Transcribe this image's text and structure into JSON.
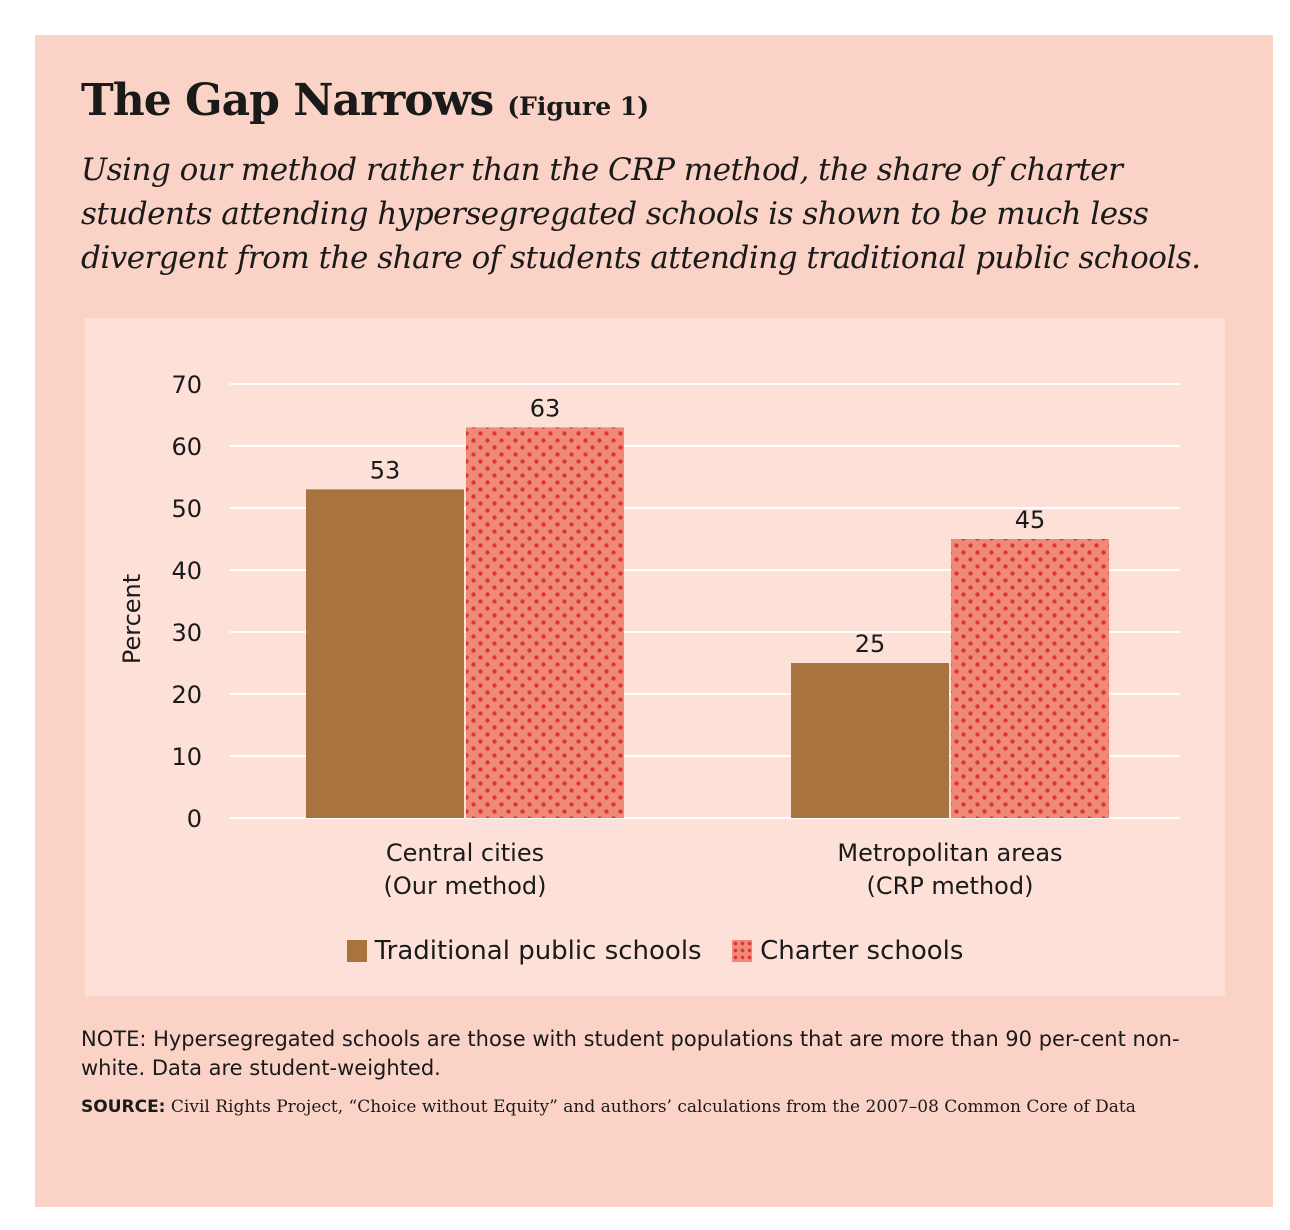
{
  "header": {
    "title": "The Gap Narrows",
    "figure_label": "(Figure 1)",
    "subtitle": "Using our method rather than the CRP method, the share of charter students attending hypersegregated schools is shown to be much less divergent from the share of students attending traditional public schools."
  },
  "chart_data": {
    "type": "bar",
    "categories": [
      [
        "Central cities",
        "(Our method)"
      ],
      [
        "Metropolitan areas",
        "(CRP method)"
      ]
    ],
    "series": [
      {
        "name": "Traditional public schools",
        "values": [
          53,
          25
        ],
        "color": "#a8733f",
        "pattern": "solid"
      },
      {
        "name": "Charter schools",
        "values": [
          63,
          45
        ],
        "color": "#f08a78",
        "dot_color": "#e23238",
        "pattern": "dots"
      }
    ],
    "ylabel": "Percent",
    "xlabel": "",
    "ylim": [
      0,
      70
    ],
    "yticks": [
      0,
      10,
      20,
      30,
      40,
      50,
      60,
      70
    ],
    "grid": true,
    "legend_position": "bottom-center"
  },
  "colors": {
    "card_background": "#fbd3c6",
    "plot_background": "#fde1d8",
    "gridline": "#ffffff",
    "text": "#1a1a1a"
  },
  "footer": {
    "note": "NOTE: Hypersegregated schools are those with student populations that are more than 90 per-cent non-white. Data are student-weighted.",
    "source_label": "SOURCE:",
    "source_text": "Civil Rights Project, “Choice without Equity” and authors’ calculations from the 2007–08 Common Core of Data"
  }
}
